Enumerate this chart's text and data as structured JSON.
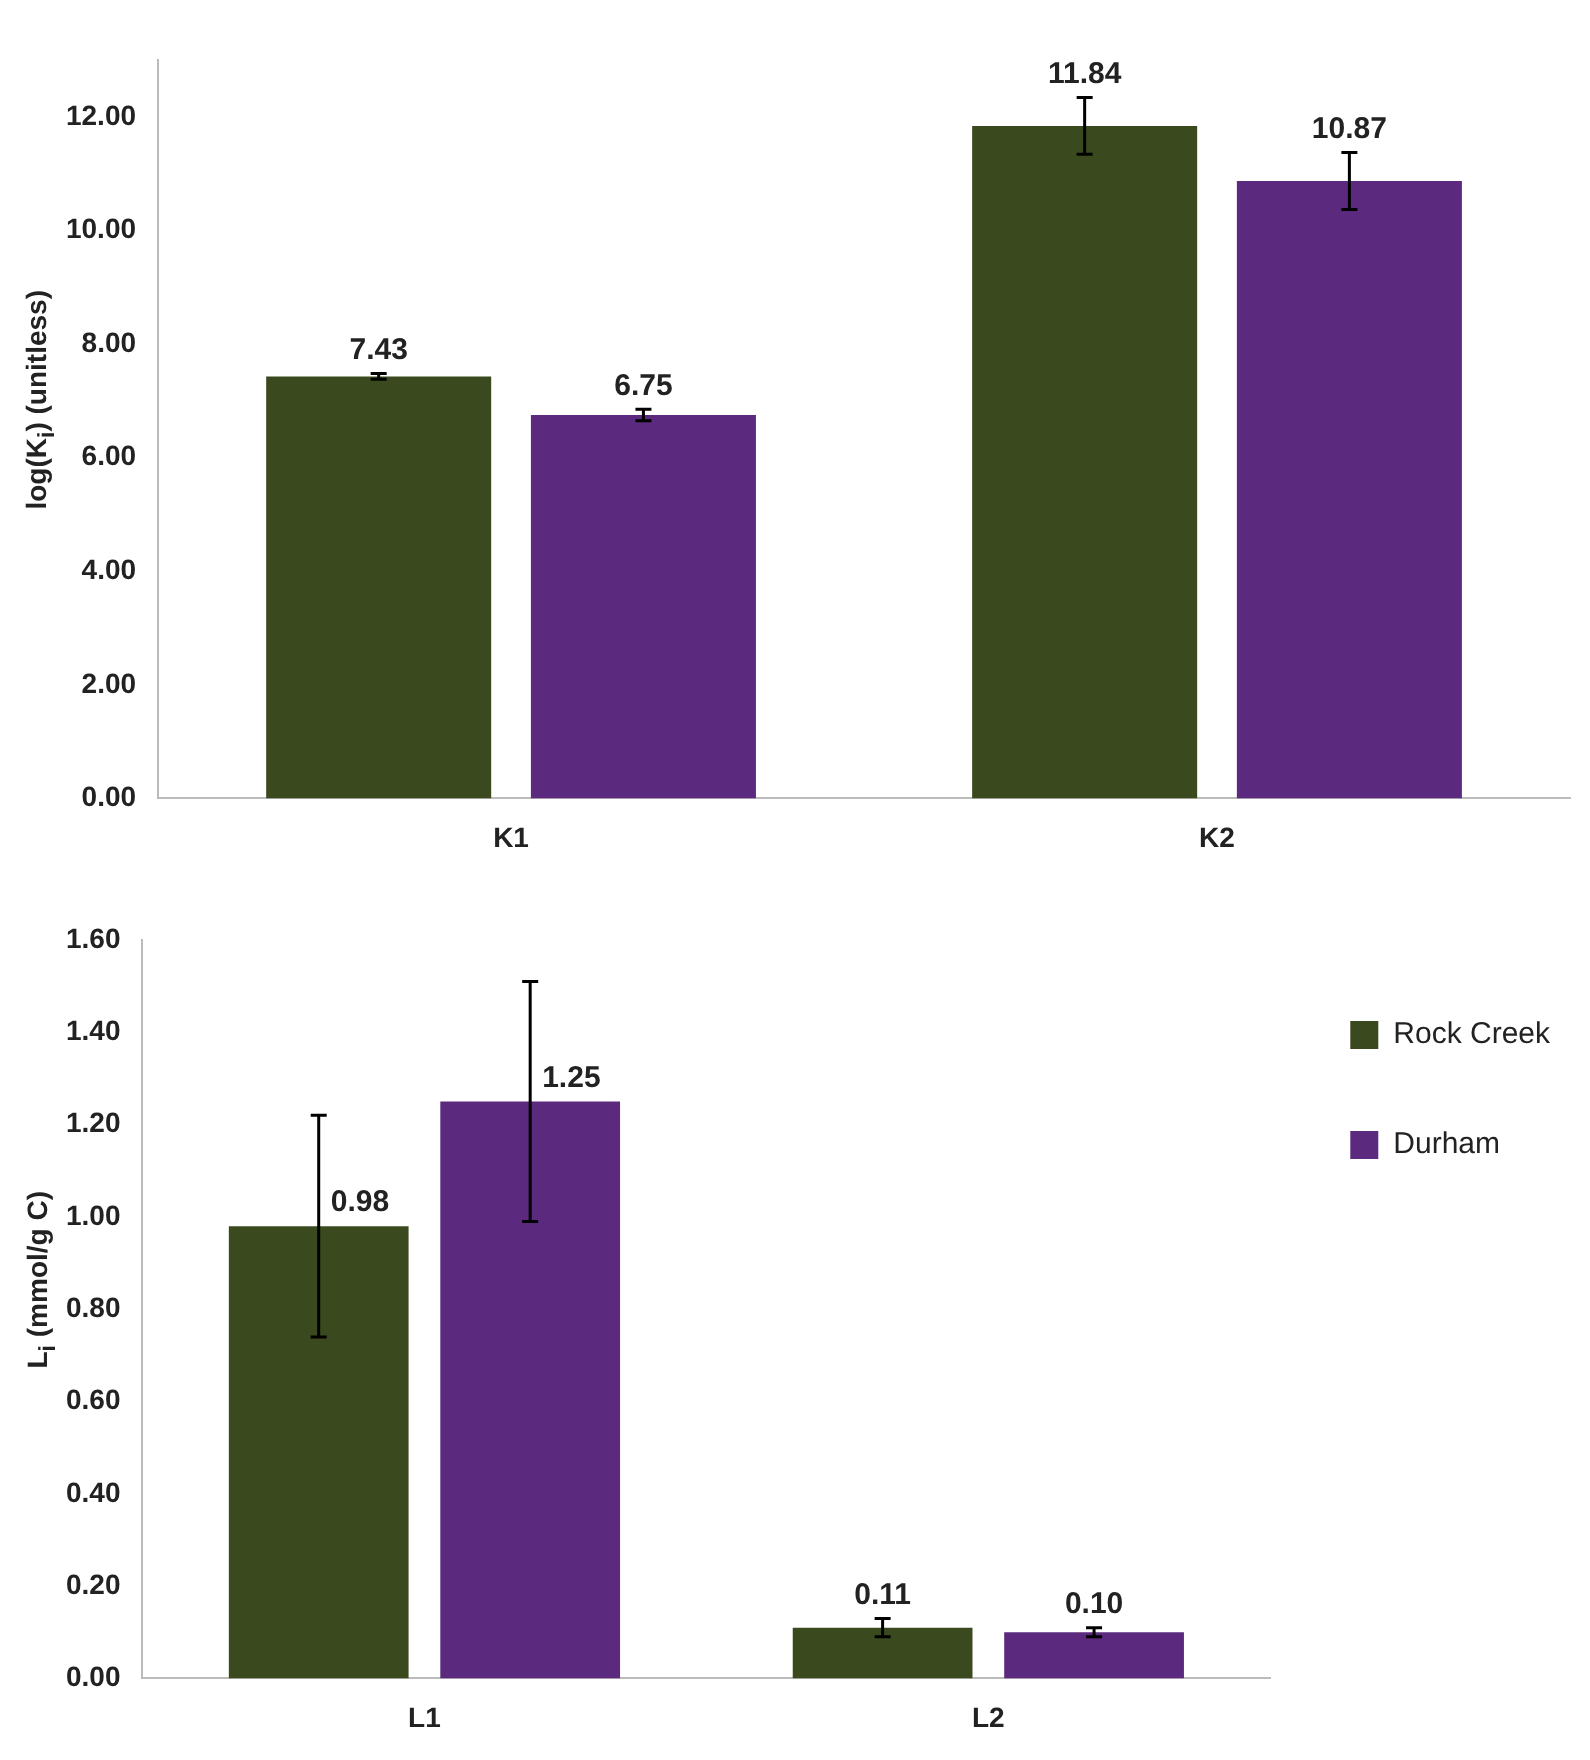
{
  "chart_data": [
    {
      "type": "bar",
      "ylabel": "log(K$_{i}$) (unitless)",
      "categories": [
        "K1",
        "K2"
      ],
      "series": [
        {
          "color": "#3a4a1e",
          "values": [
            7.43,
            11.84
          ],
          "errors": [
            0.05,
            0.5
          ],
          "value_labels": [
            "7.43",
            "11.84"
          ]
        },
        {
          "color": "#5b2a7e",
          "values": [
            6.75,
            10.87
          ],
          "errors": [
            0.1,
            0.5
          ],
          "value_labels": [
            "6.75",
            "10.87"
          ]
        }
      ],
      "ylim": [
        0,
        13
      ],
      "yticks": [
        {
          "value": 0,
          "label": "0.00"
        },
        {
          "value": 2,
          "label": "2.00"
        },
        {
          "value": 4,
          "label": "4.00"
        },
        {
          "value": 6,
          "label": "6.00"
        },
        {
          "value": 8,
          "label": "8.00"
        },
        {
          "value": 10,
          "label": "10.00"
        },
        {
          "value": 12,
          "label": "12.00"
        }
      ],
      "grid": false,
      "legend": false
    },
    {
      "type": "bar",
      "ylabel": "L$_{i}$ (mmol/g C)",
      "categories": [
        "L1",
        "L2"
      ],
      "series": [
        {
          "name": "Rock Creek",
          "color": "#3a4a1e",
          "values": [
            0.98,
            0.11
          ],
          "errors": [
            0.24,
            0.02
          ],
          "value_labels": [
            "0.98",
            "0.11"
          ]
        },
        {
          "name": "Durham",
          "color": "#5b2a7e",
          "values": [
            1.25,
            0.1
          ],
          "errors": [
            0.26,
            0.01
          ],
          "value_labels": [
            "1.25",
            "0.10"
          ]
        }
      ],
      "ylim": [
        0,
        1.6
      ],
      "yticks": [
        {
          "value": 0,
          "label": "0.00"
        },
        {
          "value": 0.2,
          "label": "0.20"
        },
        {
          "value": 0.4,
          "label": "0.40"
        },
        {
          "value": 0.6,
          "label": "0.60"
        },
        {
          "value": 0.8,
          "label": "0.80"
        },
        {
          "value": 1,
          "label": "1.00"
        },
        {
          "value": 1.2,
          "label": "1.20"
        },
        {
          "value": 1.4,
          "label": "1.40"
        },
        {
          "value": 1.6,
          "label": "1.60"
        }
      ],
      "grid": false,
      "legend": "top right"
    }
  ]
}
